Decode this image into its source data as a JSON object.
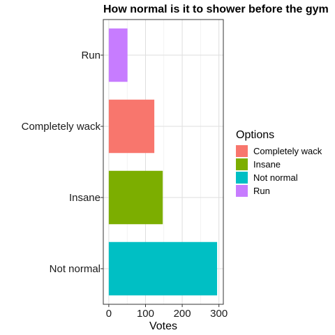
{
  "chart_data": {
    "type": "bar",
    "orientation": "horizontal",
    "title": "How normal is it to shower before the gym",
    "xlabel": "Votes",
    "ylabel": "",
    "categories": [
      "Not normal",
      "Insane",
      "Completely wack",
      "Run"
    ],
    "values": [
      295,
      147,
      124,
      51
    ],
    "colors": [
      "#00BFC4",
      "#7CAE00",
      "#F8766D",
      "#C77CFF"
    ],
    "xlim": [
      -15,
      312
    ],
    "xticks": [
      0,
      100,
      200,
      300
    ],
    "grid": true,
    "legend": {
      "title": "Options",
      "position": "right",
      "entries": [
        {
          "label": "Completely wack",
          "color": "#F8766D"
        },
        {
          "label": "Insane",
          "color": "#7CAE00"
        },
        {
          "label": "Not normal",
          "color": "#00BFC4"
        },
        {
          "label": "Run",
          "color": "#C77CFF"
        }
      ]
    }
  }
}
